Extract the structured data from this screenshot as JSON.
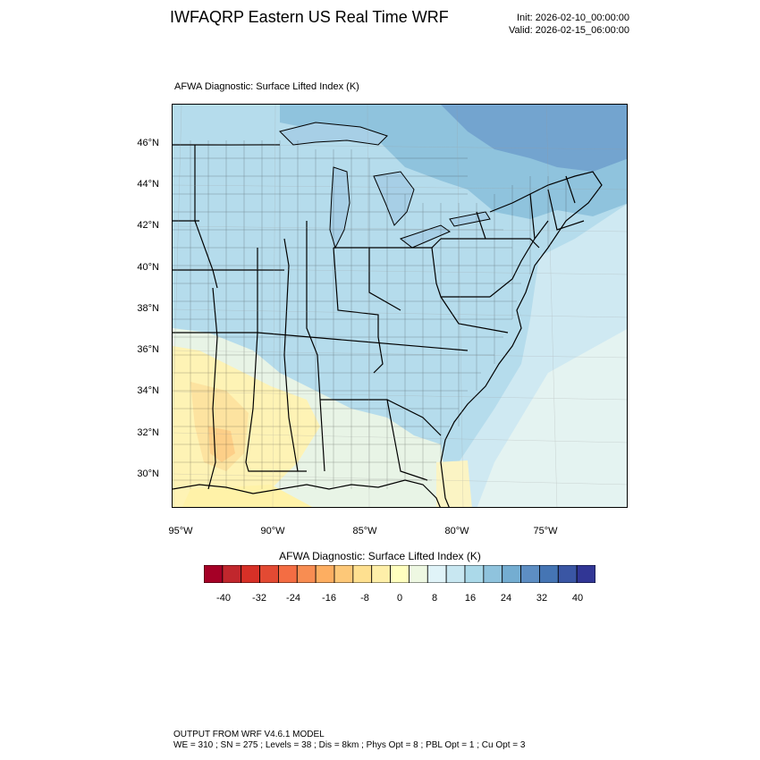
{
  "header": {
    "title": "IWFAQRP Eastern US Real Time WRF",
    "init": "Init: 2026-02-10_00:00:00",
    "valid": "Valid: 2026-02-15_06:00:00"
  },
  "map": {
    "subtitle": "AFWA Diagnostic: Surface Lifted Index   (K)",
    "field": "Surface Lifted Index",
    "units": "K",
    "lat_labels": [
      "46°N",
      "44°N",
      "42°N",
      "40°N",
      "38°N",
      "36°N",
      "34°N",
      "32°N",
      "30°N"
    ],
    "lon_labels": [
      "95°W",
      "90°W",
      "85°W",
      "80°W",
      "75°W"
    ],
    "regions_shown": [
      "Eastern United States",
      "Great Lakes",
      "Gulf of Mexico coast",
      "Atlantic coast"
    ]
  },
  "colorbar": {
    "title": "AFWA Diagnostic: Surface Lifted Index  (K)",
    "labels": [
      "-40",
      "-32",
      "-24",
      "-16",
      "-8",
      "0",
      "8",
      "16",
      "24",
      "32",
      "40"
    ],
    "colors": [
      "#a50026",
      "#c1272d",
      "#d73027",
      "#e34a33",
      "#f46d43",
      "#f88d52",
      "#fdae61",
      "#fdc878",
      "#fee090",
      "#feefa9",
      "#ffffbf",
      "#eef8e2",
      "#e0f3f8",
      "#c8e7f1",
      "#abd9e9",
      "#8fc3dd",
      "#74add1",
      "#5d8ec3",
      "#4575b4",
      "#3a56a4",
      "#313695"
    ]
  },
  "footer": {
    "line1": "OUTPUT FROM WRF V4.6.1 MODEL",
    "line2": "WE = 310 ; SN = 275 ; Levels = 38 ; Dis = 8km ; Phys Opt = 8 ; PBL Opt = 1 ; Cu Opt = 3"
  }
}
